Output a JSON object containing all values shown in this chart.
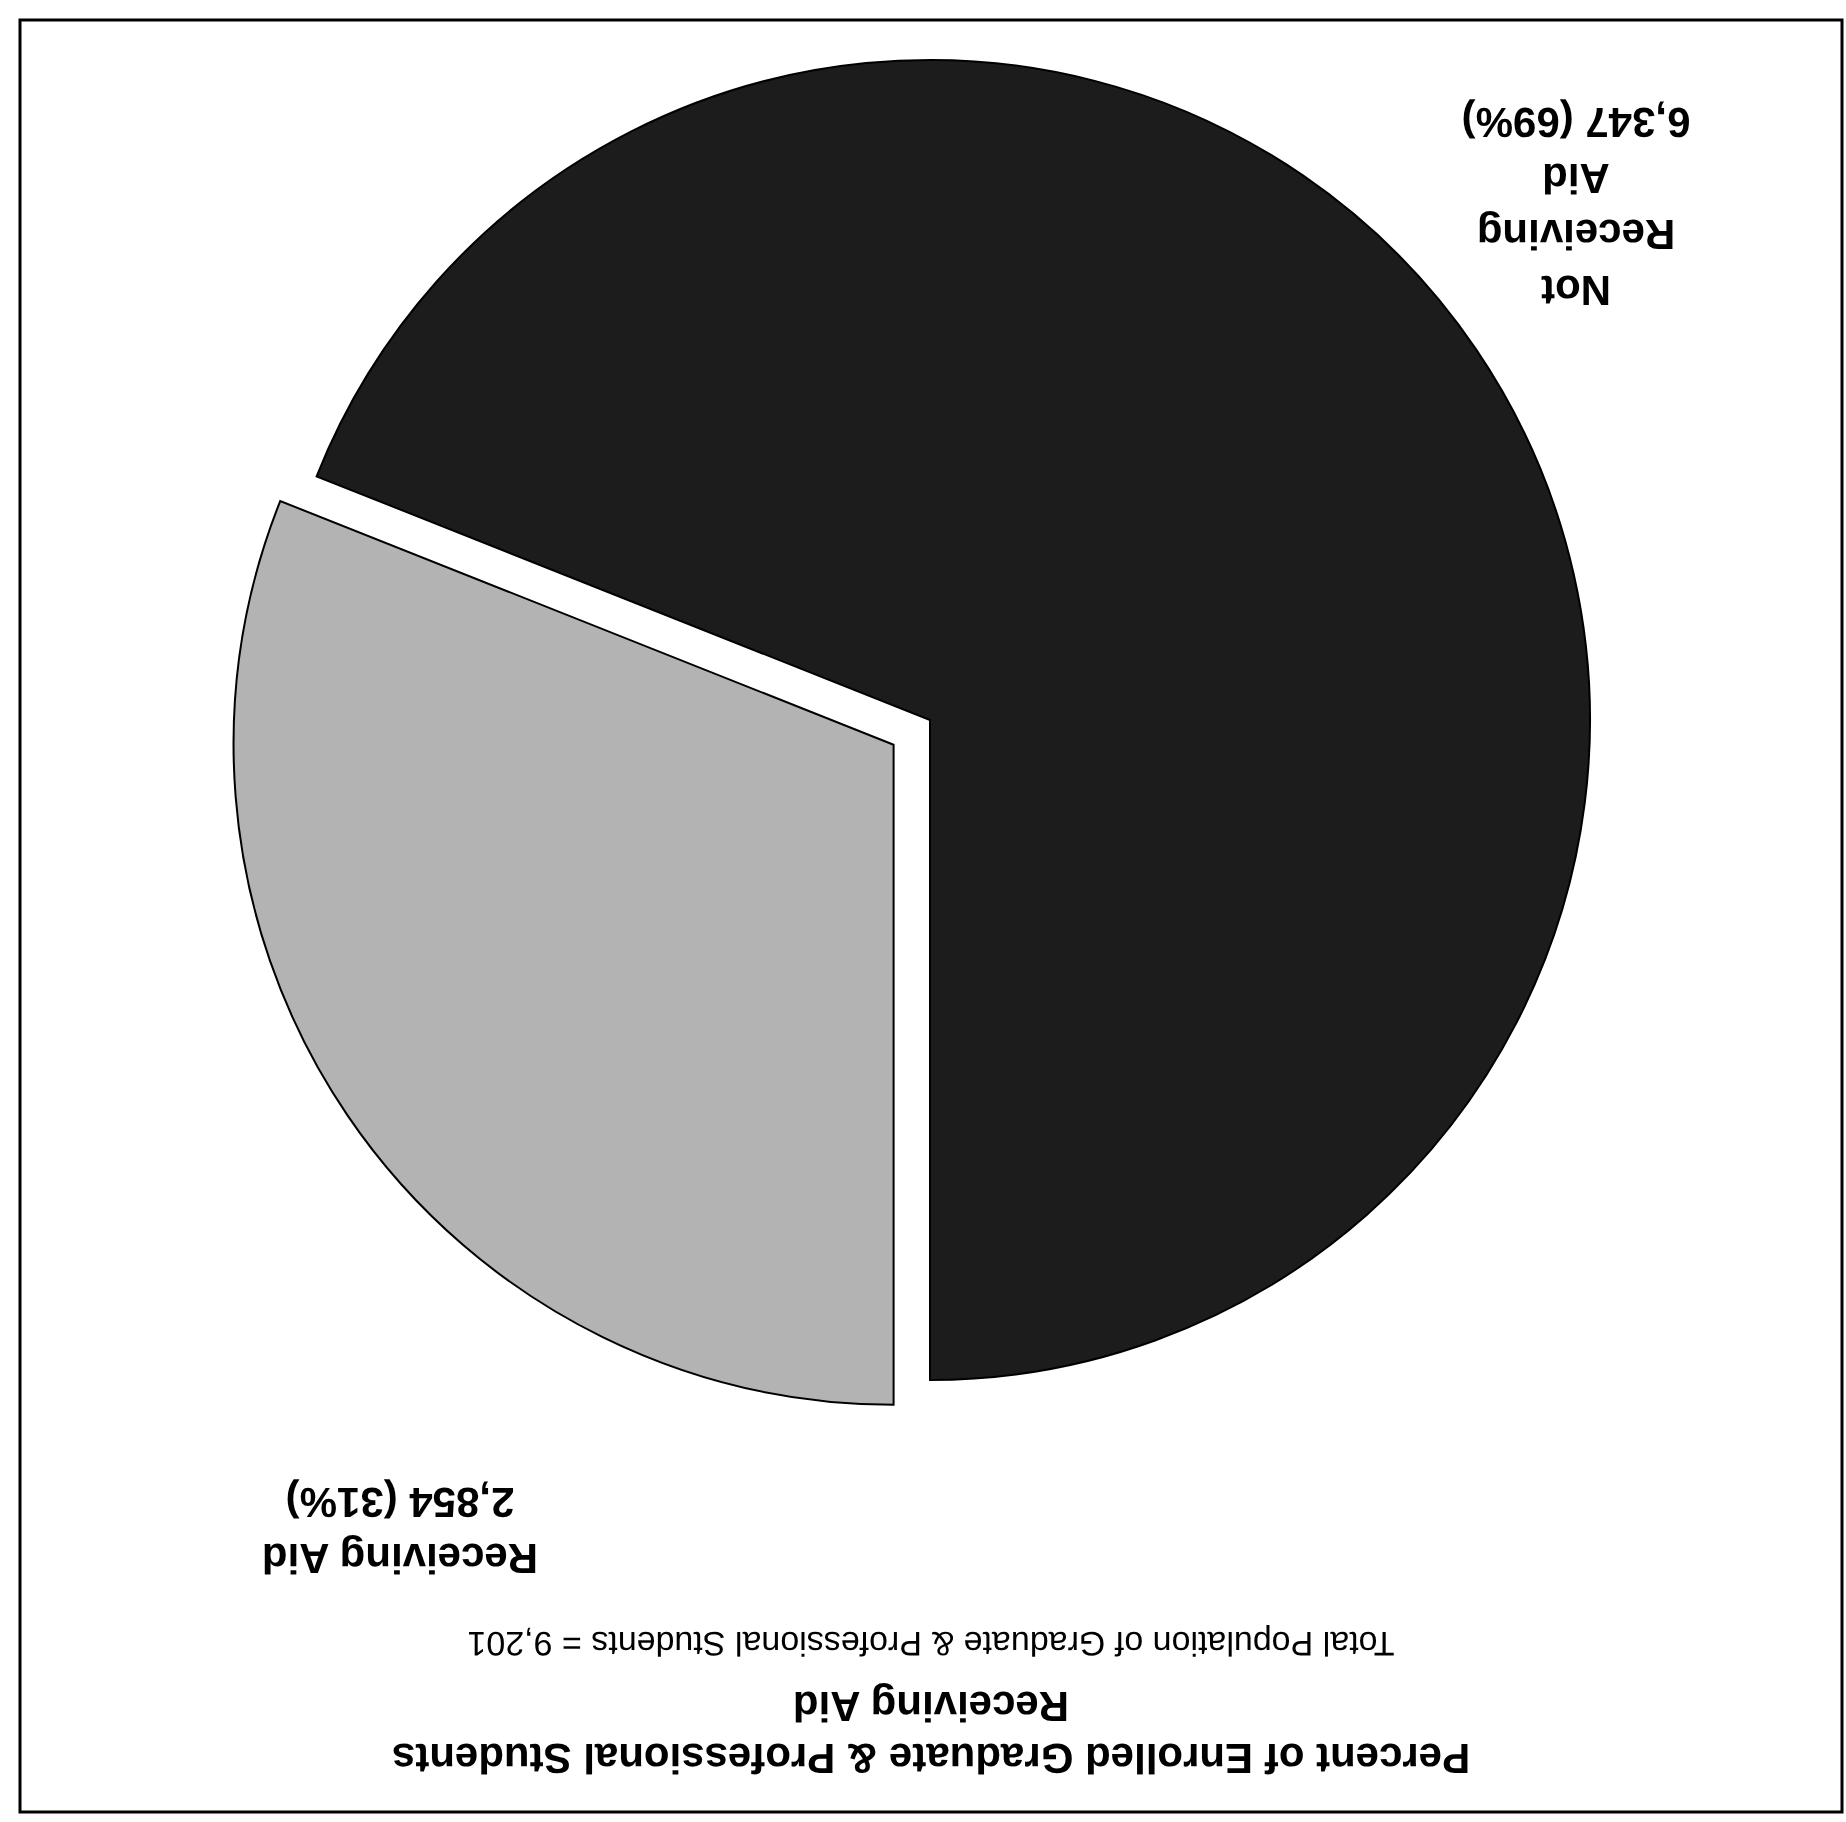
{
  "chart_data": {
    "type": "pie",
    "title": "Percent of Enrolled Graduate & Professional Students Receiving Aid",
    "subtitle": "Total Population of Graduate & Professional Students = 9,201",
    "categories": [
      "Receiving Aid",
      "Not Receiving Aid"
    ],
    "values": [
      2854,
      6347
    ],
    "value_labels": [
      "2,854 (31%)",
      "6,347 (69%)"
    ],
    "colors": [
      "#b3b3b3",
      "#1c1c1c"
    ]
  }
}
